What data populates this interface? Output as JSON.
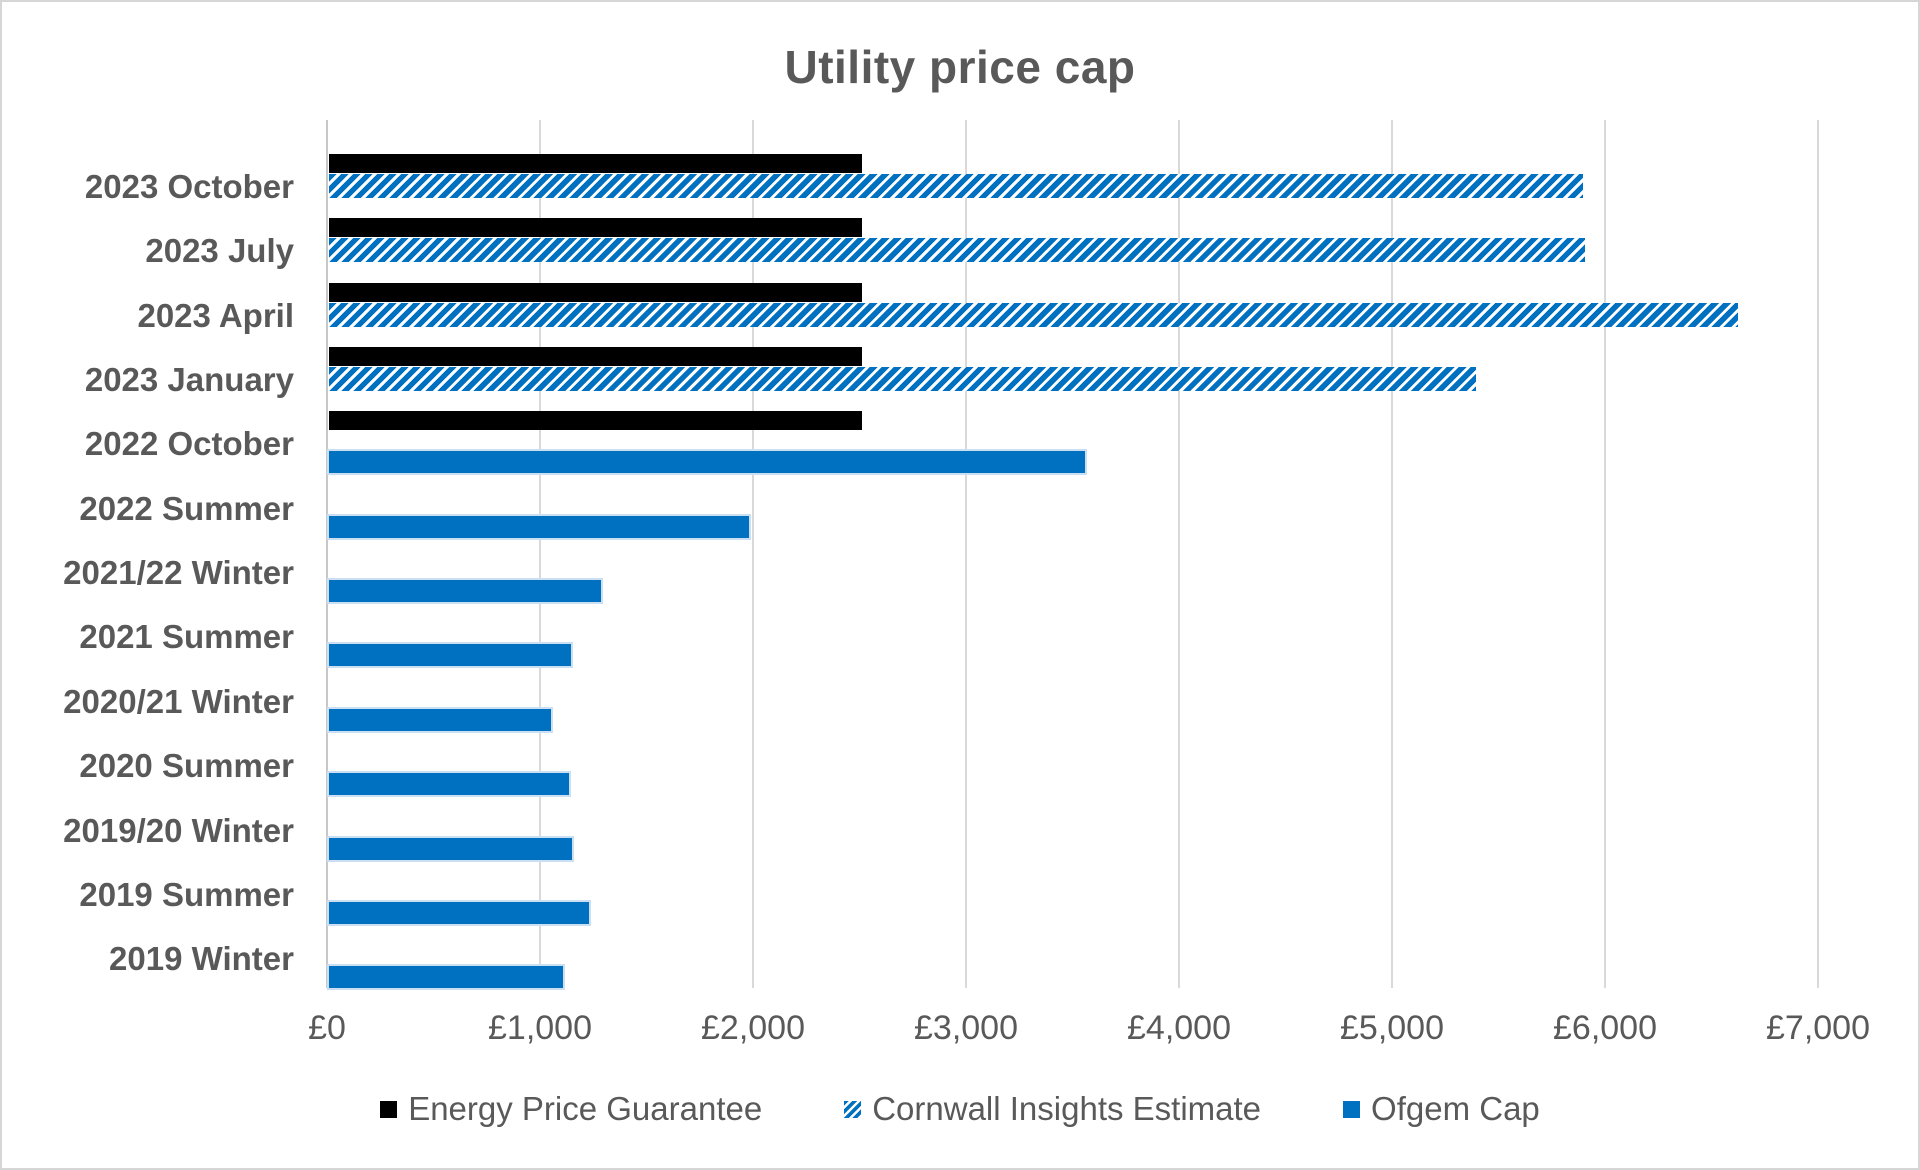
{
  "chart_data": {
    "type": "bar",
    "orientation": "horizontal",
    "title": "Utility price cap",
    "currency": "£",
    "categories": [
      "2023 October",
      "2023 July",
      "2023 April",
      "2023 January",
      "2022 October",
      "2022 Summer",
      "2021/22 Winter",
      "2021 Summer",
      "2020/21 Winter",
      "2020 Summer",
      "2019/20 Winter",
      "2019 Summer",
      "2019 Winter"
    ],
    "series": [
      {
        "name": "Energy Price Guarantee",
        "color": "#000000",
        "pattern": "solid",
        "values": [
          2500,
          2500,
          2500,
          2500,
          2500,
          null,
          null,
          null,
          null,
          null,
          null,
          null,
          null
        ]
      },
      {
        "name": "Cornwall Insights Estimate",
        "color": "#0070C0",
        "pattern": "diagonal-hatch",
        "values": [
          5887,
          5897,
          6616,
          5387,
          null,
          null,
          null,
          null,
          null,
          null,
          null,
          null,
          null
        ]
      },
      {
        "name": "Ofgem Cap",
        "color": "#0070C0",
        "pattern": "solid",
        "values": [
          null,
          null,
          null,
          null,
          3549,
          1971,
          1277,
          1138,
          1042,
          1126,
          1140,
          1220,
          1100
        ]
      }
    ],
    "x_axis": {
      "min": 0,
      "max": 7000,
      "tick_interval": 1000,
      "tick_labels": [
        "£0",
        "£1,000",
        "£2,000",
        "£3,000",
        "£4,000",
        "£5,000",
        "£6,000",
        "£7,000"
      ]
    },
    "legend": {
      "position": "bottom",
      "entries": [
        "Energy Price Guarantee",
        "Cornwall Insights Estimate",
        "Ofgem Cap"
      ]
    },
    "grid": "vertical",
    "colors": {
      "bar_blue": "#0070C0",
      "bar_black": "#000000",
      "text_gray": "#595959",
      "gridline": "#D9D9D9"
    }
  }
}
